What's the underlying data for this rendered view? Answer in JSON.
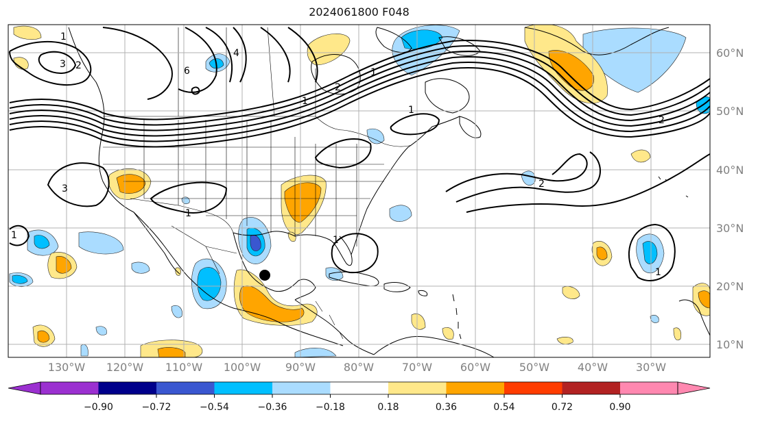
{
  "title": "2024061800 F048",
  "latitude_labels": [
    "60°N",
    "50°N",
    "40°N",
    "30°N",
    "20°N",
    "10°N"
  ],
  "longitude_labels": [
    "130°W",
    "120°W",
    "110°W",
    "100°W",
    "90°W",
    "80°W",
    "70°W",
    "60°W",
    "50°W",
    "40°W",
    "30°W"
  ],
  "colorbar": {
    "labels": [
      "−0.90",
      "−0.72",
      "−0.54",
      "−0.36",
      "−0.18",
      "0.18",
      "0.36",
      "0.54",
      "0.72",
      "0.90"
    ],
    "colors": [
      "#9b30d0",
      "#00008b",
      "#3a57d0",
      "#00bfff",
      "#aadcff",
      "#ffffff",
      "#ffe88a",
      "#ffa500",
      "#ff3c00",
      "#b22222",
      "#ff88b0"
    ]
  },
  "contour_labels": [
    "1",
    "2",
    "3",
    "4",
    "6",
    "1",
    "2",
    "3",
    "1",
    "1",
    "2",
    "1",
    "1",
    "1",
    "1",
    "2"
  ],
  "marker": {
    "name": "storm-center"
  },
  "colors": {
    "anomaly_pos_light": "#ffe88a",
    "anomaly_pos": "#ffa500",
    "anomaly_neg_light": "#aadcff",
    "anomaly_neg": "#00bfff",
    "anomaly_neg_strong": "#3a57d0",
    "contour": "#000000",
    "grid": "#b0b0b0"
  }
}
